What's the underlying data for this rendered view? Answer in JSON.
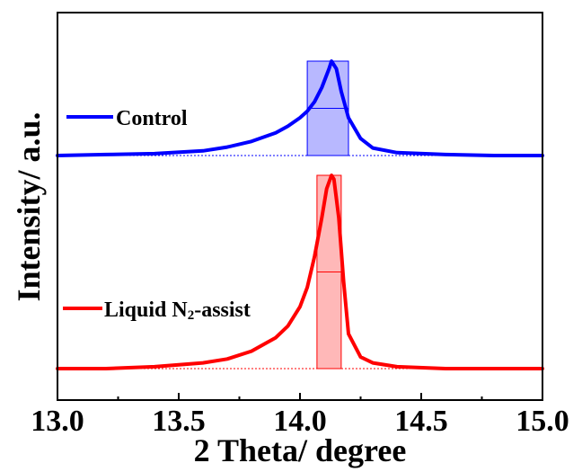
{
  "chart_data": {
    "type": "line",
    "xlabel": "2 Theta/ degree",
    "ylabel": "Intensity/ a.u.",
    "xlim": [
      13.0,
      15.0
    ],
    "xticks": [
      "13.0",
      "13.5",
      "14.0",
      "14.5",
      "15.0"
    ],
    "xtick_values": [
      13.0,
      13.5,
      14.0,
      14.5,
      15.0
    ],
    "y_ticks_shown": false,
    "series": [
      {
        "name": "Control",
        "legend_label": "Control",
        "color": "#0000ff",
        "x": [
          13.0,
          13.2,
          13.4,
          13.6,
          13.7,
          13.8,
          13.9,
          13.95,
          14.0,
          14.03,
          14.06,
          14.09,
          14.12,
          14.13,
          14.15,
          14.17,
          14.2,
          14.25,
          14.3,
          14.4,
          14.6,
          14.8,
          15.0
        ],
        "y": [
          0.0,
          0.01,
          0.02,
          0.05,
          0.09,
          0.15,
          0.24,
          0.31,
          0.4,
          0.47,
          0.57,
          0.72,
          0.92,
          1.0,
          0.92,
          0.68,
          0.4,
          0.18,
          0.08,
          0.03,
          0.01,
          0.0,
          0.0
        ],
        "fwhm_box": {
          "x_start": 14.03,
          "x_end": 14.2,
          "color": "#0000ff"
        }
      },
      {
        "name": "Liquid N2-assist",
        "legend_label_main": "Liquid N",
        "legend_label_sub": "2",
        "legend_label_tail": "-assist",
        "color": "#ff0000",
        "x": [
          13.0,
          13.2,
          13.4,
          13.6,
          13.7,
          13.8,
          13.9,
          13.95,
          14.0,
          14.03,
          14.06,
          14.09,
          14.11,
          14.13,
          14.14,
          14.16,
          14.18,
          14.2,
          14.25,
          14.3,
          14.4,
          14.6,
          14.8,
          15.0
        ],
        "y": [
          0.0,
          0.0,
          0.01,
          0.03,
          0.05,
          0.09,
          0.16,
          0.22,
          0.32,
          0.42,
          0.58,
          0.78,
          0.93,
          1.0,
          0.98,
          0.78,
          0.45,
          0.18,
          0.06,
          0.03,
          0.01,
          0.0,
          0.0,
          0.0
        ],
        "fwhm_box": {
          "x_start": 14.07,
          "x_end": 14.17,
          "color": "#ff0000"
        }
      }
    ]
  }
}
